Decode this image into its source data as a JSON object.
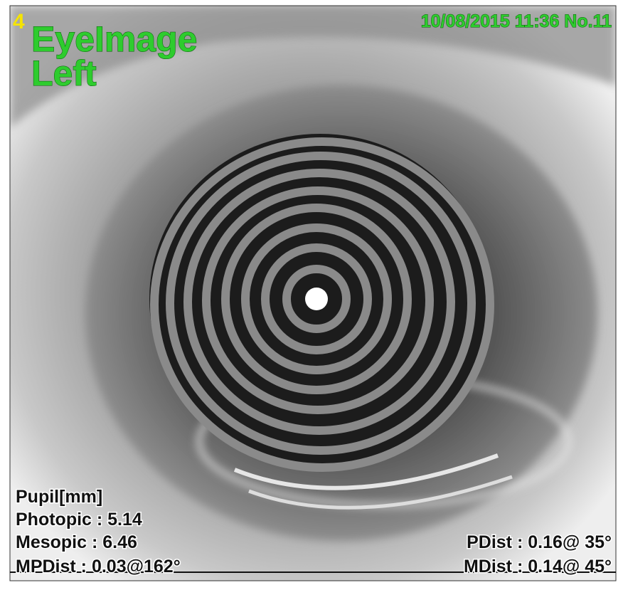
{
  "header": {
    "index": "4",
    "title": "EyeImage",
    "eye": "Left",
    "timestamp": "10/08/2015 11:36 No.11"
  },
  "pupil": {
    "heading": "Pupil[mm]",
    "rows": [
      "Photopic : 5.14",
      "Mesopic : 6.46",
      "MPDist : 0.03@162°"
    ]
  },
  "distances": [
    "PDist : 0.16@ 35°",
    "MDist : 0.14@ 45°"
  ]
}
